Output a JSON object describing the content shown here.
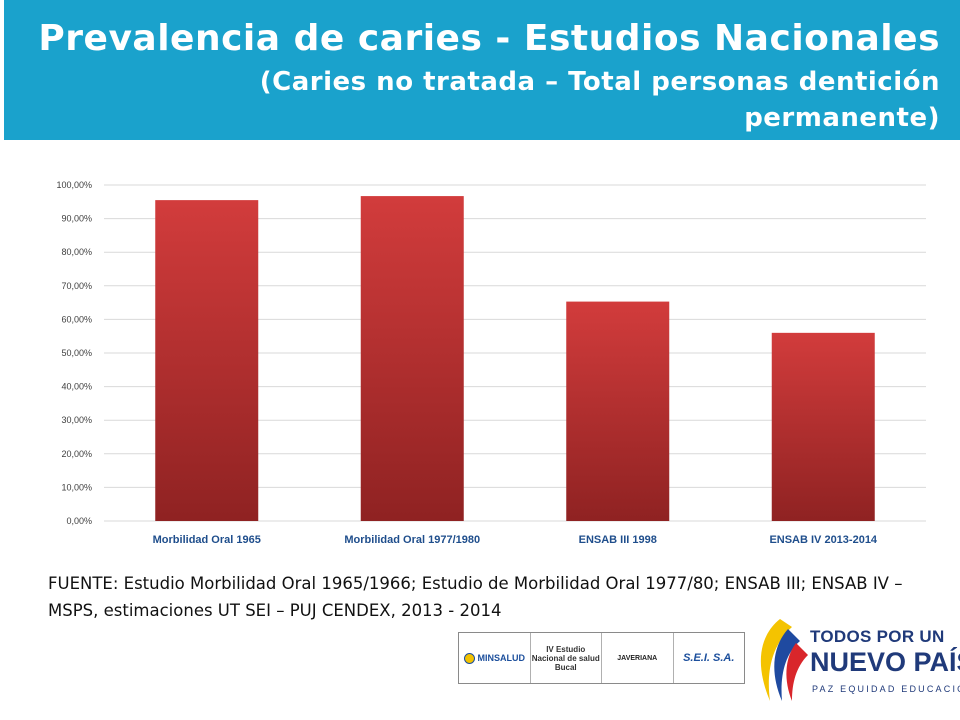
{
  "header": {
    "title": "Prevalencia de caries - Estudios Nacionales",
    "subtitle": "(Caries no tratada – Total personas dentición permanente)",
    "background": "#1aa2cc"
  },
  "chart_data": {
    "type": "bar",
    "categories": [
      "Morbilidad Oral 1965",
      "Morbilidad Oral 1977/1980",
      "ENSAB III 1998",
      "ENSAB IV 2013-2014"
    ],
    "values": [
      95.5,
      96.7,
      65.3,
      56.0
    ],
    "ylim": [
      0,
      100
    ],
    "yticks": [
      "0,00%",
      "10,00%",
      "20,00%",
      "30,00%",
      "40,00%",
      "50,00%",
      "60,00%",
      "70,00%",
      "80,00%",
      "90,00%",
      "100,00%"
    ],
    "grid": true,
    "bar_color_top": "#d23c3c",
    "bar_color_bottom": "#8f2222"
  },
  "source": "FUENTE: Estudio Morbilidad Oral 1965/1966; Estudio de  Morbilidad Oral 1977/80; ENSAB III; ENSAB IV – MSPS, estimaciones UT SEI – PUJ CENDEX, 2013  - 2014",
  "logos": {
    "minsalud": "MINSALUD",
    "ensab": "IV Estudio Nacional de salud Bucal",
    "javeriana": "JAVERIANA",
    "sei": "S.E.I. S.A.",
    "tpun_line1": "TODOS POR UN",
    "tpun_line2": "NUEVO PAÍS",
    "tpun_line3": "PAZ EQUIDAD EDUCACIÓN"
  }
}
